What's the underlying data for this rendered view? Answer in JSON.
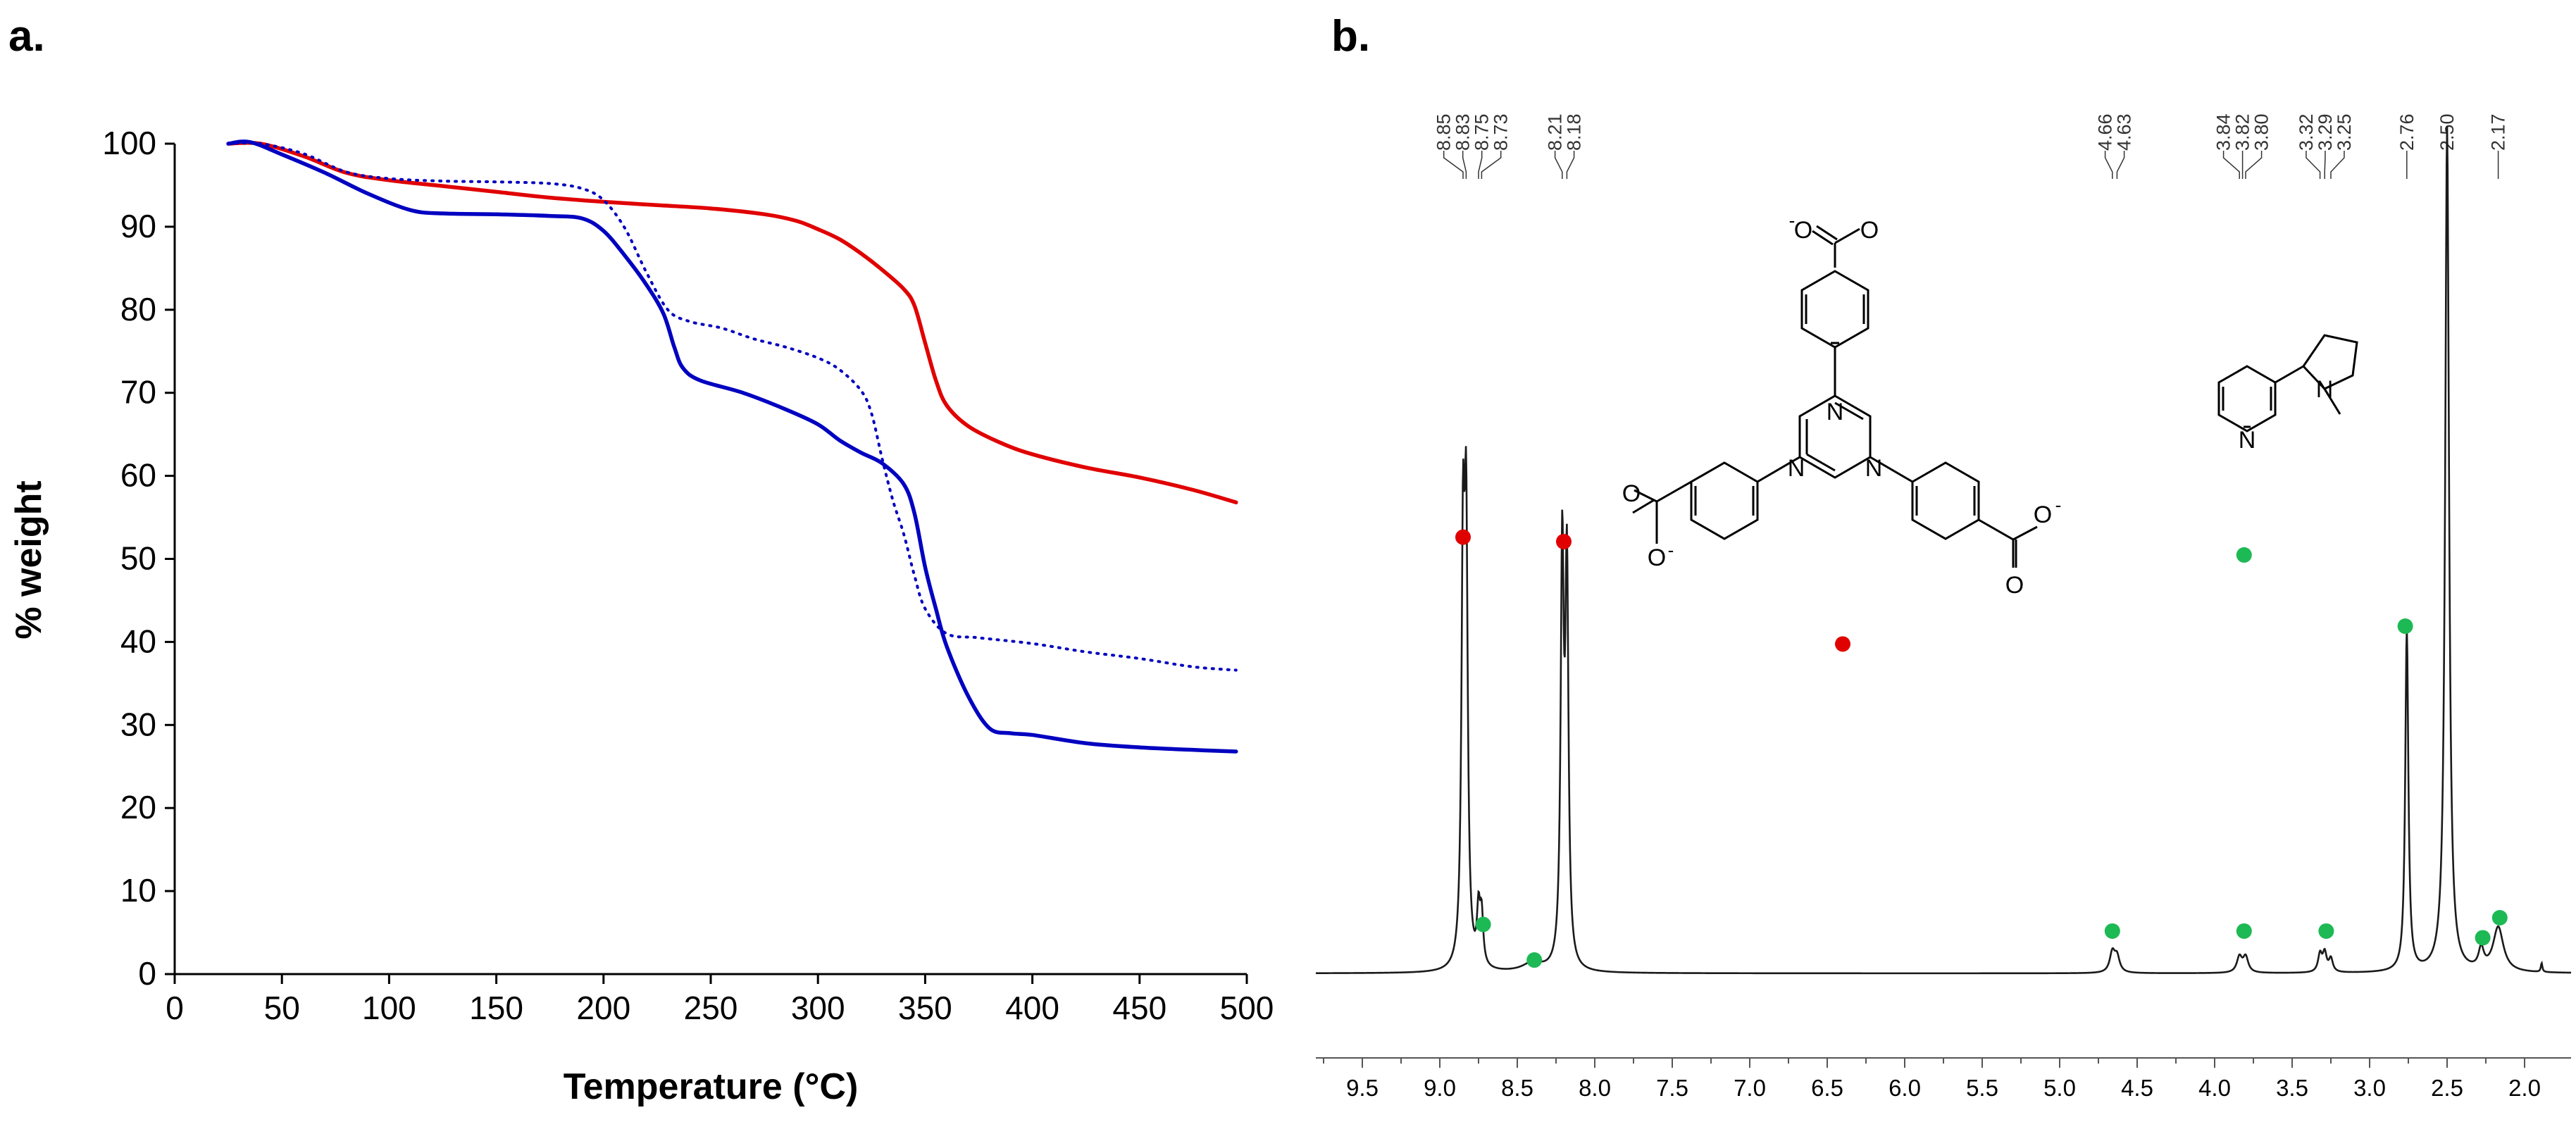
{
  "panel_a_label": "a.",
  "panel_b_label": "b.",
  "colors": {
    "red_curve": "#e00000",
    "blue_curve": "#0000c0",
    "nmr_trace": "#1a1a1a",
    "marker_red": "#e00000",
    "marker_green": "#1db954"
  },
  "chart_data": [
    {
      "type": "line",
      "title": "",
      "xlabel": "Temperature (°C)",
      "ylabel": "% weight",
      "xlim": [
        0,
        500
      ],
      "ylim": [
        0,
        100
      ],
      "xticks": [
        0,
        50,
        100,
        150,
        200,
        250,
        300,
        350,
        400,
        450,
        500
      ],
      "yticks": [
        0,
        10,
        20,
        30,
        40,
        50,
        60,
        70,
        80,
        90,
        100
      ],
      "grid": false,
      "series": [
        {
          "color": "red",
          "style": "solid",
          "points": [
            [
              25,
              100
            ],
            [
              40,
              100
            ],
            [
              60,
              98.5
            ],
            [
              80,
              96.5
            ],
            [
              100,
              95.6
            ],
            [
              125,
              94.9
            ],
            [
              150,
              94.2
            ],
            [
              175,
              93.5
            ],
            [
              200,
              93
            ],
            [
              225,
              92.6
            ],
            [
              250,
              92.2
            ],
            [
              275,
              91.5
            ],
            [
              290,
              90.7
            ],
            [
              300,
              89.7
            ],
            [
              310,
              88.5
            ],
            [
              320,
              86.8
            ],
            [
              330,
              84.8
            ],
            [
              340,
              82.5
            ],
            [
              345,
              80.5
            ],
            [
              350,
              76
            ],
            [
              355,
              71.5
            ],
            [
              360,
              68.5
            ],
            [
              370,
              66
            ],
            [
              385,
              64
            ],
            [
              400,
              62.6
            ],
            [
              425,
              61
            ],
            [
              450,
              59.8
            ],
            [
              475,
              58.3
            ],
            [
              495,
              56.8
            ]
          ]
        },
        {
          "color": "blue",
          "style": "solid",
          "points": [
            [
              25,
              100
            ],
            [
              35,
              100.2
            ],
            [
              50,
              98.7
            ],
            [
              70,
              96.5
            ],
            [
              90,
              94
            ],
            [
              110,
              92
            ],
            [
              125,
              91.6
            ],
            [
              150,
              91.5
            ],
            [
              175,
              91.3
            ],
            [
              190,
              91
            ],
            [
              200,
              89.5
            ],
            [
              210,
              86.5
            ],
            [
              220,
              83
            ],
            [
              228,
              79.5
            ],
            [
              233,
              75.5
            ],
            [
              237,
              73
            ],
            [
              245,
              71.5
            ],
            [
              265,
              70
            ],
            [
              285,
              68
            ],
            [
              300,
              66.2
            ],
            [
              310,
              64.3
            ],
            [
              320,
              62.8
            ],
            [
              330,
              61.5
            ],
            [
              340,
              59
            ],
            [
              345,
              55.5
            ],
            [
              350,
              49
            ],
            [
              355,
              44
            ],
            [
              360,
              39.5
            ],
            [
              370,
              33.5
            ],
            [
              380,
              29.6
            ],
            [
              390,
              29
            ],
            [
              400,
              28.8
            ],
            [
              425,
              27.8
            ],
            [
              450,
              27.3
            ],
            [
              475,
              27
            ],
            [
              495,
              26.8
            ]
          ]
        },
        {
          "color": "blue",
          "style": "dotted",
          "points": [
            [
              25,
              100
            ],
            [
              40,
              100
            ],
            [
              60,
              98.8
            ],
            [
              80,
              96.6
            ],
            [
              100,
              95.8
            ],
            [
              125,
              95.5
            ],
            [
              150,
              95.4
            ],
            [
              175,
              95.2
            ],
            [
              190,
              94.6
            ],
            [
              200,
              93.2
            ],
            [
              210,
              89.8
            ],
            [
              220,
              84.5
            ],
            [
              230,
              80
            ],
            [
              240,
              78.6
            ],
            [
              255,
              77.8
            ],
            [
              270,
              76.5
            ],
            [
              285,
              75.5
            ],
            [
              300,
              74.2
            ],
            [
              310,
              72.8
            ],
            [
              320,
              70.3
            ],
            [
              325,
              67.5
            ],
            [
              330,
              62
            ],
            [
              335,
              57
            ],
            [
              340,
              53
            ],
            [
              345,
              48
            ],
            [
              350,
              44
            ],
            [
              360,
              41
            ],
            [
              375,
              40.5
            ],
            [
              400,
              39.8
            ],
            [
              425,
              38.8
            ],
            [
              450,
              38
            ],
            [
              475,
              37
            ],
            [
              495,
              36.6
            ]
          ]
        }
      ]
    },
    {
      "type": "line",
      "title": "",
      "xlabel": "",
      "ylabel": "",
      "xlim": [
        9.8,
        1.7
      ],
      "x_axis_reversed": true,
      "xticks": [
        9.5,
        9.0,
        8.5,
        8.0,
        7.5,
        7.0,
        6.5,
        6.0,
        5.5,
        5.0,
        4.5,
        4.0,
        3.5,
        3.0,
        2.5,
        2.0
      ],
      "xtick_labels": [
        "9.5",
        "9.0",
        "8.5",
        "8.0",
        "7.5",
        "7.0",
        "6.5",
        "6.0",
        "5.5",
        "5.0",
        "4.5",
        "4.0",
        "3.5",
        "3.0",
        "2.5",
        "2.0"
      ],
      "grid": false,
      "baseline_relative": 0.0,
      "peaks": [
        {
          "ppm": 8.85,
          "height": 0.89,
          "width": 0.012
        },
        {
          "ppm": 8.83,
          "height": 0.93,
          "width": 0.012
        },
        {
          "ppm": 8.75,
          "height": 0.12,
          "width": 0.012
        },
        {
          "ppm": 8.73,
          "height": 0.11,
          "width": 0.012
        },
        {
          "ppm": 8.4,
          "height": 0.02,
          "width": 0.08
        },
        {
          "ppm": 8.21,
          "height": 0.92,
          "width": 0.012
        },
        {
          "ppm": 8.18,
          "height": 0.88,
          "width": 0.012
        },
        {
          "ppm": 4.66,
          "height": 0.045,
          "width": 0.02
        },
        {
          "ppm": 4.63,
          "height": 0.035,
          "width": 0.02
        },
        {
          "ppm": 3.84,
          "height": 0.035,
          "width": 0.02
        },
        {
          "ppm": 3.8,
          "height": 0.035,
          "width": 0.02
        },
        {
          "ppm": 3.32,
          "height": 0.04,
          "width": 0.015
        },
        {
          "ppm": 3.29,
          "height": 0.042,
          "width": 0.015
        },
        {
          "ppm": 3.25,
          "height": 0.03,
          "width": 0.015
        },
        {
          "ppm": 2.76,
          "height": 0.77,
          "width": 0.012
        },
        {
          "ppm": 2.5,
          "height": 1.9,
          "width": 0.015
        },
        {
          "ppm": 2.28,
          "height": 0.045,
          "width": 0.02
        },
        {
          "ppm": 2.17,
          "height": 0.1,
          "width": 0.04
        },
        {
          "ppm": 1.89,
          "height": 0.02,
          "width": 0.006
        }
      ],
      "peak_labels": [
        "8.85",
        "8.83",
        "8.75",
        "8.73",
        "8.21",
        "8.18",
        "4.66",
        "4.63",
        "3.84",
        "3.82",
        "3.80",
        "3.32",
        "3.29",
        "3.25",
        "2.76",
        "2.50",
        "2.17"
      ],
      "markers": [
        {
          "ppm": 8.85,
          "level": 0.98,
          "color": "red"
        },
        {
          "ppm": 8.2,
          "level": 0.97,
          "color": "red"
        },
        {
          "ppm": 8.72,
          "level": 0.11,
          "color": "green"
        },
        {
          "ppm": 8.39,
          "level": 0.03,
          "color": "green"
        },
        {
          "ppm": 4.66,
          "level": 0.095,
          "color": "green"
        },
        {
          "ppm": 3.81,
          "level": 0.095,
          "color": "green"
        },
        {
          "ppm": 3.28,
          "level": 0.095,
          "color": "green"
        },
        {
          "ppm": 2.77,
          "level": 0.78,
          "color": "green"
        },
        {
          "ppm": 2.27,
          "level": 0.08,
          "color": "green"
        },
        {
          "ppm": 2.16,
          "level": 0.125,
          "color": "green"
        },
        {
          "ppm": 3.81,
          "level": 0.94,
          "color": "green"
        },
        {
          "ppm": 6.4,
          "level": 0.74,
          "color": "red"
        }
      ]
    }
  ],
  "molecule_labels": {
    "nitrogen": "N",
    "oxygen": "O",
    "negative_charge": "-"
  }
}
